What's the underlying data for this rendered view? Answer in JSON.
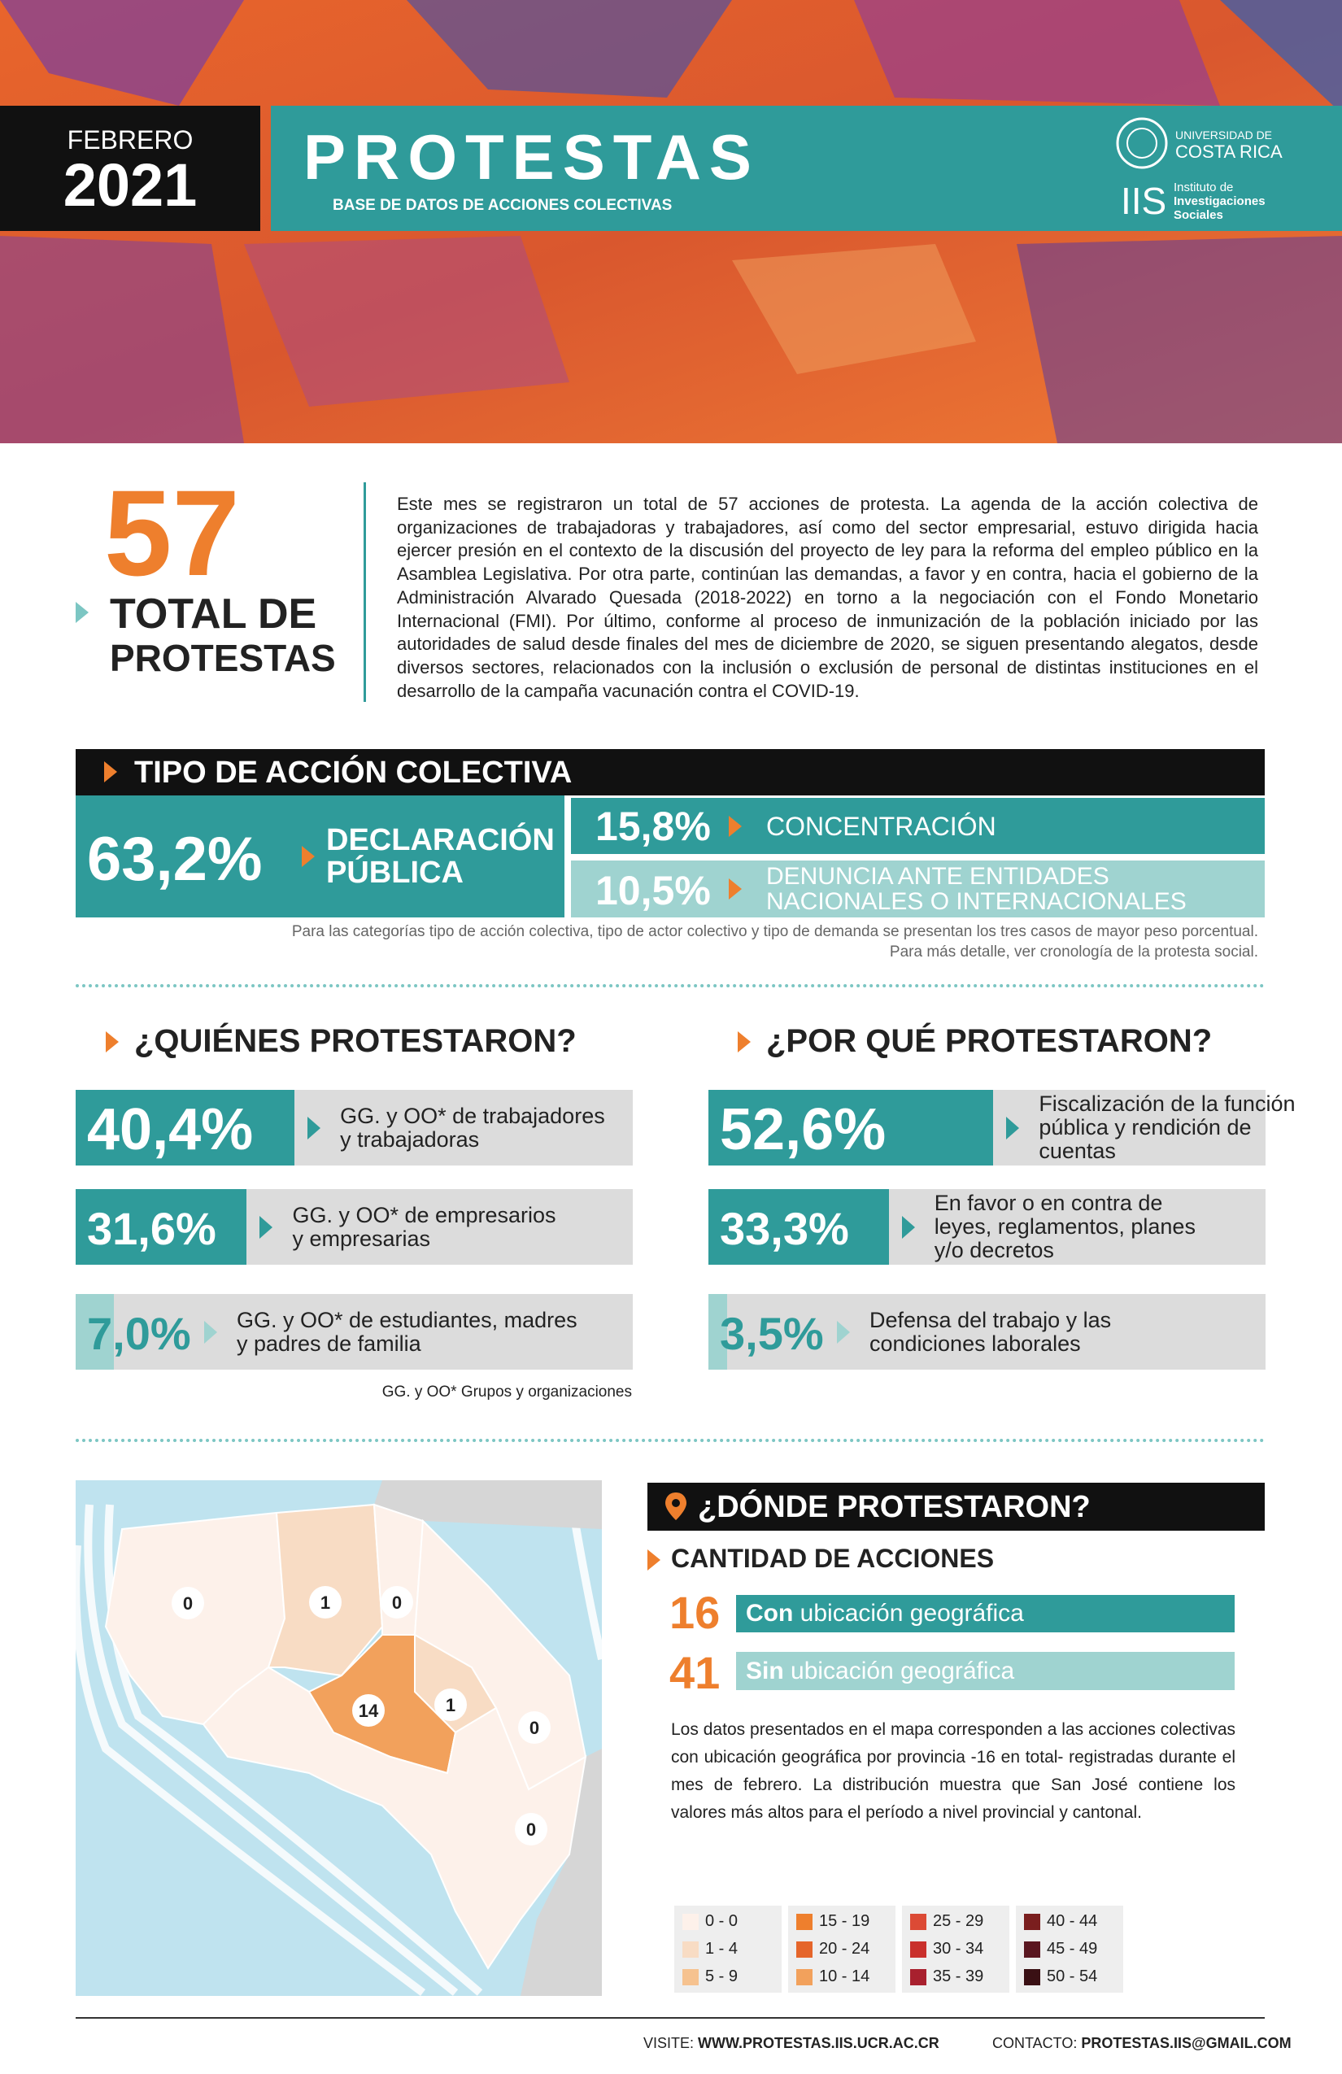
{
  "header": {
    "month": "FEBRERO",
    "year": "2021",
    "brand": "PROTESTAS",
    "brand_subtitle": "BASE DE DATOS DE ACCIONES COLECTIVAS",
    "university": [
      "UNIVERSIDAD DE",
      "COSTA RICA"
    ],
    "institute_abbr": "IIS",
    "institute": [
      "Instituto de",
      "Investigaciones",
      "Sociales"
    ]
  },
  "summary": {
    "total": 57,
    "total_label": [
      "TOTAL DE",
      "PROTESTAS"
    ],
    "text": "Este mes se registraron un total de 57 acciones de protesta. La agenda de la acción colectiva de organizaciones de trabajadoras y trabajadores, así como del sector empresarial, estuvo dirigida hacia ejercer presión en el contexto de la discusión del proyecto de ley para la reforma del empleo público en la Asamblea Legislativa. Por otra parte, continúan las demandas, a favor y en contra, hacia el gobierno de la Administración Alvarado Quesada (2018-2022) en torno a la negociación con el Fondo Monetario Internacional (FMI). Por último, conforme al proceso de inmunización de la población iniciado por las autoridades de salud desde finales del mes de diciembre de 2020, se siguen presentando alegatos, desde diversos sectores, relacionados con la inclusión o exclusión de personal de distintas instituciones en el desarrollo de la campaña vacunación contra el COVID-19."
  },
  "action_type": {
    "title": "TIPO DE ACCIÓN COLECTIVA",
    "items": [
      {
        "percent": "63,2%",
        "name": [
          "DECLARACIÓN",
          "PÚBLICA"
        ]
      },
      {
        "percent": "15,8%",
        "name": [
          "CONCENTRACIÓN"
        ]
      },
      {
        "percent": "10,5%",
        "name": [
          "DENUNCIA ANTE ENTIDADES",
          "NACIONALES O INTERNACIONALES"
        ]
      }
    ],
    "note": [
      "Para las categorías tipo de acción colectiva, tipo de actor colectivo y tipo de demanda se presentan los tres casos de mayor peso porcentual.",
      "Para más detalle, ver cronología de la protesta social."
    ]
  },
  "who": {
    "title": "¿QUIÉNES PROTESTARON?",
    "items": [
      {
        "value": 40.4,
        "label": "40,4%",
        "text": [
          "GG. y OO* de trabajadores",
          "y trabajadoras"
        ]
      },
      {
        "value": 31.6,
        "label": "31,6%",
        "text": [
          "GG. y OO* de empresarios",
          "y empresarias"
        ]
      },
      {
        "value": 7.0,
        "label": "7,0%",
        "text": [
          "GG. y OO* de estudiantes, madres",
          "y padres de familia"
        ]
      }
    ],
    "footnote": "GG. y OO* Grupos y organizaciones"
  },
  "why": {
    "title": "¿POR QUÉ PROTESTARON?",
    "items": [
      {
        "value": 52.6,
        "label": "52,6%",
        "text": [
          "Fiscalización de la función",
          "pública y rendición de",
          "cuentas"
        ]
      },
      {
        "value": 33.3,
        "label": "33,3%",
        "text": [
          "En favor o en contra de",
          "leyes, reglamentos, planes",
          "y/o decretos"
        ]
      },
      {
        "value": 3.5,
        "label": "3,5%",
        "text": [
          "Defensa del trabajo y las",
          "condiciones laborales"
        ]
      }
    ]
  },
  "where": {
    "title": "¿DÓNDE PROTESTARON?",
    "subtitle": "CANTIDAD DE ACCIONES",
    "counts": [
      {
        "number": 16,
        "bold": "Con",
        "text": "ubicación geográfica"
      },
      {
        "number": 41,
        "bold": "Sin",
        "text": "ubicación geográfica"
      }
    ],
    "text": "Los datos presentados en el mapa corresponden a las acciones colectivas con ubicación geográfica por provincia -16 en total- registradas durante el mes de febrero. La distribución muestra que San José contiene los valores más altos para el período a nivel provincial y cantonal.",
    "map_values": [
      0,
      1,
      0,
      14,
      1,
      0,
      0
    ],
    "legend": [
      {
        "label": "0 - 0",
        "color": "#fdf1ea"
      },
      {
        "label": "1 - 4",
        "color": "#f8dcc4"
      },
      {
        "label": "5 - 9",
        "color": "#f6c28f"
      },
      {
        "label": "15 - 19",
        "color": "#ee7f2d"
      },
      {
        "label": "20 - 24",
        "color": "#e5652a"
      },
      {
        "label": "10 - 14",
        "color": "#f2a15c"
      },
      {
        "label": "25 - 29",
        "color": "#dc4a35"
      },
      {
        "label": "30 - 34",
        "color": "#c9302c"
      },
      {
        "label": "35 - 39",
        "color": "#a8202e"
      },
      {
        "label": "40 - 44",
        "color": "#7a1e1e"
      },
      {
        "label": "45 - 49",
        "color": "#5a1620"
      },
      {
        "label": "50 - 54",
        "color": "#3a1014"
      }
    ]
  },
  "footer": {
    "visit_label": "VISITE:",
    "visit": "WWW.PROTESTAS.IIS.UCR.AC.CR",
    "contact_label": "CONTACTO:",
    "contact": "PROTESTAS.IIS@GMAIL.COM"
  }
}
